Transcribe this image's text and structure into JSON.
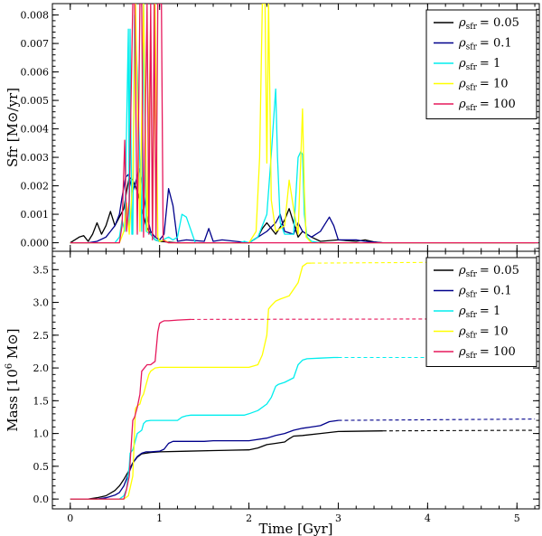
{
  "chart_data": [
    {
      "type": "line",
      "panel": "top",
      "ylabel": "Sfr [M⊙/yr]",
      "xlabel": "",
      "xlim": [
        -0.2,
        5.25
      ],
      "ylim": [
        -0.0003,
        0.0084
      ],
      "yticks": [
        0.0,
        0.001,
        0.002,
        0.003,
        0.004,
        0.005,
        0.006,
        0.007,
        0.008
      ],
      "ytick_labels": [
        "0.000",
        "0.001",
        "0.002",
        "0.003",
        "0.004",
        "0.005",
        "0.006",
        "0.007",
        "0.008"
      ],
      "legend_position": "top-right",
      "series": [
        {
          "name": "ρsfr = 0.05",
          "legend_sub": "sfr",
          "legend_val": "= 0.05",
          "color": "#000000",
          "x": [
            0.0,
            0.1,
            0.15,
            0.2,
            0.25,
            0.3,
            0.35,
            0.4,
            0.45,
            0.5,
            0.55,
            0.6,
            0.63,
            0.66,
            0.7,
            0.75,
            0.8,
            0.85,
            0.9,
            0.95,
            1.0,
            1.1,
            1.2,
            1.5,
            2.0,
            2.1,
            2.15,
            2.2,
            2.3,
            2.4,
            2.45,
            2.5,
            2.55,
            2.6,
            2.7,
            2.8,
            3.0,
            3.2,
            3.3,
            3.4,
            3.5,
            5.2
          ],
          "y": [
            0,
            0.0002,
            0.00025,
            5e-05,
            0.0003,
            0.0007,
            0.0003,
            0.0006,
            0.0011,
            0.0006,
            0.0009,
            0.0012,
            0.0018,
            0.0023,
            0.0022,
            0.0018,
            0.0012,
            0.0006,
            0.0003,
            0.0001,
            5e-05,
            2e-05,
            0,
            0,
            0,
            0.0002,
            0.0005,
            0.0007,
            0.0003,
            0.0008,
            0.0012,
            0.0007,
            0.0002,
            0.0004,
            0.0002,
            5e-05,
            0.0001,
            5e-05,
            0.0001,
            3e-05,
            0,
            0
          ]
        },
        {
          "name": "ρsfr = 0.1",
          "legend_sub": "sfr",
          "legend_val": "= 0.1",
          "color": "#00008b",
          "x": [
            0.0,
            0.2,
            0.3,
            0.4,
            0.45,
            0.5,
            0.55,
            0.58,
            0.62,
            0.65,
            0.7,
            0.73,
            0.77,
            0.8,
            0.83,
            0.87,
            0.9,
            0.95,
            1.0,
            1.05,
            1.1,
            1.15,
            1.2,
            1.3,
            1.5,
            1.55,
            1.6,
            1.7,
            2.0,
            2.1,
            2.2,
            2.3,
            2.35,
            2.4,
            2.5,
            2.55,
            2.6,
            2.7,
            2.8,
            2.9,
            2.95,
            3.0,
            3.2,
            3.3,
            3.5,
            5.2
          ],
          "y": [
            0,
            0,
            5e-05,
            0.0002,
            0.0004,
            0.0006,
            0.001,
            0.0016,
            0.0023,
            0.0024,
            0.0018,
            0.0021,
            0.0026,
            0.0022,
            0.0015,
            0.0008,
            0.0004,
            0.0002,
            0.0001,
            0.0003,
            0.0019,
            0.0013,
            5e-05,
            0.0001,
            5e-05,
            0.0005,
            5e-05,
            0.0001,
            0,
            0.0002,
            0.0004,
            0.0007,
            0.001,
            0.0004,
            0.0003,
            0.0007,
            0.0004,
            0.0002,
            0.0004,
            0.0009,
            0.0006,
            0.0001,
            0.0001,
            5e-05,
            0,
            0
          ]
        },
        {
          "name": "ρsfr = 1",
          "legend_sub": "sfr",
          "legend_val": "= 1",
          "color": "#00eeee",
          "x": [
            0.0,
            0.5,
            0.55,
            0.58,
            0.61,
            0.63,
            0.65,
            0.66,
            0.67,
            0.69,
            0.7,
            0.72,
            0.75,
            0.8,
            0.82,
            0.85,
            0.9,
            0.95,
            1.0,
            1.1,
            1.15,
            1.2,
            1.25,
            1.3,
            1.4,
            1.9,
            1.95,
            2.0,
            2.05,
            2.1,
            2.2,
            2.25,
            2.3,
            2.32,
            2.35,
            2.4,
            2.5,
            2.55,
            2.58,
            2.6,
            2.62,
            2.65,
            2.7,
            2.8,
            3.0,
            5.2
          ],
          "y": [
            0,
            0,
            0.0002,
            0.0008,
            0.0004,
            0.004,
            0.0075,
            0.0005,
            0.0075,
            0.0003,
            0.0003,
            0.008,
            0.006,
            0.0004,
            0.0084,
            0.0004,
            0.0003,
            0.0001,
            5e-05,
            0.0002,
            0.0001,
            0.0002,
            0.001,
            0.0009,
            0,
            0,
            5e-05,
            0,
            0.0001,
            0.0002,
            0.001,
            0.0031,
            0.0054,
            0.003,
            0.0007,
            0.0003,
            0.0003,
            0.003,
            0.0032,
            0.0031,
            0.001,
            0.0002,
            5e-05,
            0,
            0,
            0
          ]
        },
        {
          "name": "ρsfr = 10",
          "legend_sub": "sfr",
          "legend_val": "= 10",
          "color": "#ffff00",
          "x": [
            0.0,
            0.55,
            0.6,
            0.63,
            0.66,
            0.7,
            0.73,
            0.78,
            0.82,
            0.86,
            0.9,
            0.92,
            0.95,
            0.98,
            1.0,
            1.05,
            1.1,
            1.5,
            2.0,
            2.08,
            2.12,
            2.15,
            2.18,
            2.2,
            2.22,
            2.25,
            2.3,
            2.4,
            2.45,
            2.5,
            2.55,
            2.6,
            2.62,
            2.64,
            2.7,
            3.0,
            5.2
          ],
          "y": [
            0,
            0,
            0.0004,
            0.0014,
            0.0003,
            0.0022,
            0.0084,
            0.0004,
            0.0084,
            0.0004,
            0.0078,
            0.0003,
            0.0084,
            0.0002,
            5e-05,
            0.0001,
            0,
            0,
            0,
            0.0004,
            0.003,
            0.0084,
            0.0084,
            0.0028,
            0.0084,
            0.0015,
            0.0004,
            0.0006,
            0.0022,
            0.0012,
            0.0003,
            0.0047,
            0.0018,
            0.0002,
            0,
            0,
            0
          ]
        },
        {
          "name": "ρsfr = 100",
          "legend_sub": "sfr",
          "legend_val": "= 100",
          "color": "#e6185c",
          "x": [
            0.0,
            0.55,
            0.58,
            0.61,
            0.63,
            0.66,
            0.7,
            0.72,
            0.75,
            0.78,
            0.8,
            0.82,
            0.86,
            0.88,
            0.9,
            0.92,
            0.94,
            0.96,
            0.98,
            1.0,
            1.02,
            1.04,
            1.06,
            1.1,
            1.5,
            5.2
          ],
          "y": [
            0,
            0,
            0.0006,
            0.0036,
            0.0004,
            0.0015,
            0.0084,
            0.0084,
            0.0003,
            0.0084,
            0.0084,
            0.0002,
            0.0084,
            0.0003,
            0.0084,
            0.0001,
            0.0084,
            0.0002,
            0.0084,
            0.0084,
            0.0084,
            0.0001,
            5e-05,
            0,
            0,
            0
          ]
        }
      ]
    },
    {
      "type": "line",
      "panel": "bottom",
      "ylabel": "Mass [10",
      "ylabel_exp": "6",
      "ylabel_unit": " M⊙]",
      "xlabel": "Time [Gyr]",
      "xlim": [
        -0.2,
        5.25
      ],
      "ylim": [
        -0.15,
        3.78
      ],
      "xticks": [
        0,
        1,
        2,
        3,
        4,
        5
      ],
      "yticks": [
        0.0,
        0.5,
        1.0,
        1.5,
        2.0,
        2.5,
        3.0,
        3.5
      ],
      "ytick_labels": [
        "0.0",
        "0.5",
        "1.0",
        "1.5",
        "2.0",
        "2.5",
        "3.0",
        "3.5"
      ],
      "legend_position": "top-right",
      "series": [
        {
          "name": "ρsfr = 0.05",
          "legend_sub": "sfr",
          "legend_val": "= 0.05",
          "color": "#000000",
          "x": [
            0.0,
            0.2,
            0.3,
            0.4,
            0.5,
            0.55,
            0.6,
            0.65,
            0.7,
            0.75,
            0.8,
            0.9,
            1.0,
            1.3,
            1.6,
            2.0,
            2.1,
            2.2,
            2.3,
            2.4,
            2.45,
            2.5,
            2.6,
            2.8,
            3.0,
            3.5
          ],
          "y": [
            0,
            0,
            0.02,
            0.05,
            0.13,
            0.2,
            0.3,
            0.42,
            0.55,
            0.64,
            0.69,
            0.71,
            0.72,
            0.73,
            0.74,
            0.75,
            0.78,
            0.83,
            0.85,
            0.87,
            0.92,
            0.96,
            0.97,
            1.0,
            1.03,
            1.04
          ],
          "dash_to": [
            5.2,
            1.05
          ]
        },
        {
          "name": "ρsfr = 0.1",
          "legend_sub": "sfr",
          "legend_val": "= 0.1",
          "color": "#00008b",
          "x": [
            0.0,
            0.3,
            0.4,
            0.5,
            0.55,
            0.6,
            0.65,
            0.7,
            0.75,
            0.8,
            0.85,
            0.9,
            1.0,
            1.05,
            1.1,
            1.15,
            1.2,
            1.5,
            1.6,
            2.0,
            2.2,
            2.3,
            2.4,
            2.5,
            2.6,
            2.7,
            2.8,
            2.9,
            3.0
          ],
          "y": [
            0,
            0,
            0.02,
            0.06,
            0.1,
            0.2,
            0.38,
            0.55,
            0.65,
            0.7,
            0.72,
            0.72,
            0.73,
            0.76,
            0.85,
            0.88,
            0.88,
            0.88,
            0.89,
            0.89,
            0.93,
            0.97,
            1.0,
            1.05,
            1.08,
            1.1,
            1.12,
            1.18,
            1.2
          ],
          "dash_to": [
            5.2,
            1.22
          ]
        },
        {
          "name": "ρsfr = 1",
          "legend_sub": "sfr",
          "legend_val": "= 1",
          "color": "#00eeee",
          "x": [
            0.0,
            0.55,
            0.6,
            0.63,
            0.65,
            0.66,
            0.67,
            0.7,
            0.72,
            0.75,
            0.8,
            0.82,
            0.85,
            0.9,
            1.0,
            1.2,
            1.25,
            1.3,
            1.35,
            1.95,
            2.0,
            2.1,
            2.2,
            2.25,
            2.3,
            2.33,
            2.4,
            2.5,
            2.55,
            2.6,
            2.65,
            2.8,
            2.95,
            3.0
          ],
          "y": [
            0,
            0,
            0.05,
            0.15,
            0.4,
            0.5,
            0.7,
            0.75,
            0.85,
            1.0,
            1.05,
            1.15,
            1.19,
            1.2,
            1.2,
            1.2,
            1.25,
            1.27,
            1.28,
            1.28,
            1.3,
            1.35,
            1.45,
            1.55,
            1.72,
            1.75,
            1.78,
            1.85,
            2.05,
            2.12,
            2.14,
            2.15,
            2.16,
            2.16
          ],
          "dash_to": [
            5.2,
            2.16
          ]
        },
        {
          "name": "ρsfr = 10",
          "legend_sub": "sfr",
          "legend_val": "= 10",
          "color": "#ffff00",
          "x": [
            0.0,
            0.6,
            0.65,
            0.7,
            0.73,
            0.75,
            0.78,
            0.8,
            0.82,
            0.85,
            0.88,
            0.9,
            0.93,
            0.95,
            1.0,
            1.2,
            1.5,
            2.0,
            2.1,
            2.15,
            2.2,
            2.22,
            2.25,
            2.3,
            2.35,
            2.45,
            2.5,
            2.55,
            2.58,
            2.6,
            2.65,
            2.7
          ],
          "y": [
            0,
            0,
            0.05,
            0.35,
            1.38,
            1.42,
            1.45,
            1.55,
            1.6,
            1.75,
            1.9,
            1.95,
            1.98,
            2.0,
            2.01,
            2.01,
            2.01,
            2.01,
            2.05,
            2.2,
            2.5,
            2.9,
            2.95,
            3.02,
            3.05,
            3.1,
            3.2,
            3.3,
            3.45,
            3.55,
            3.6,
            3.6
          ],
          "dash_to": [
            5.2,
            3.62
          ]
        },
        {
          "name": "ρsfr = 100",
          "legend_sub": "sfr",
          "legend_val": "= 100",
          "color": "#e6185c",
          "x": [
            0.0,
            0.6,
            0.63,
            0.66,
            0.7,
            0.72,
            0.75,
            0.78,
            0.8,
            0.83,
            0.86,
            0.9,
            0.95,
            0.98,
            1.0,
            1.02,
            1.05,
            1.1,
            1.2,
            1.35
          ],
          "y": [
            0,
            0,
            0.15,
            0.35,
            1.2,
            1.25,
            1.4,
            1.6,
            1.95,
            2.0,
            2.05,
            2.05,
            2.1,
            2.55,
            2.68,
            2.7,
            2.72,
            2.72,
            2.73,
            2.74
          ],
          "dash_to": [
            5.2,
            2.75
          ]
        }
      ]
    }
  ]
}
